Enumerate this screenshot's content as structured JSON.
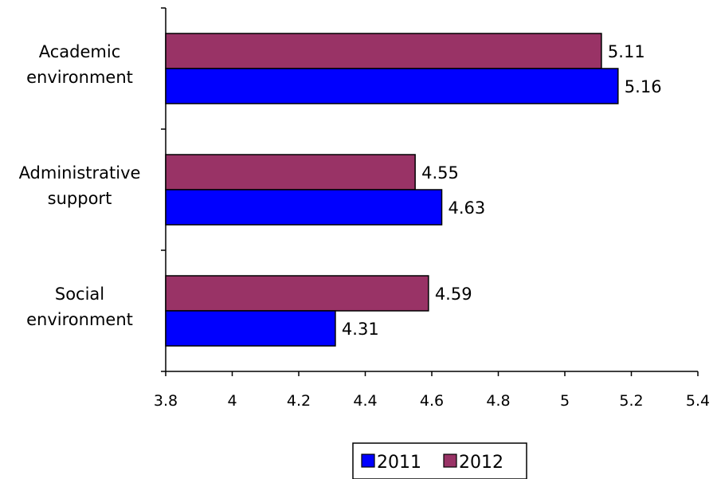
{
  "chart_data": {
    "type": "bar",
    "orientation": "horizontal",
    "categories": [
      [
        "Academic",
        "environment"
      ],
      [
        "Administrative",
        "support"
      ],
      [
        "Social",
        "environment"
      ]
    ],
    "series": [
      {
        "name": "2011",
        "color": "#0000ff",
        "values": [
          5.16,
          4.63,
          4.31
        ]
      },
      {
        "name": "2012",
        "color": "#993366",
        "values": [
          5.11,
          4.55,
          4.59
        ]
      }
    ],
    "data_labels": [
      [
        "5.16",
        "4.63",
        "4.31"
      ],
      [
        "5.11",
        "4.55",
        "4.59"
      ]
    ],
    "xlim": [
      3.8,
      5.4
    ],
    "xticks": [
      3.8,
      4,
      4.2,
      4.4,
      4.6,
      4.8,
      5,
      5.2,
      5.4
    ],
    "xtick_labels": [
      "3.8",
      "4",
      "4.2",
      "4.4",
      "4.6",
      "4.8",
      "5",
      "5.2",
      "5.4"
    ],
    "legend_position": "bottom",
    "grid": false
  }
}
